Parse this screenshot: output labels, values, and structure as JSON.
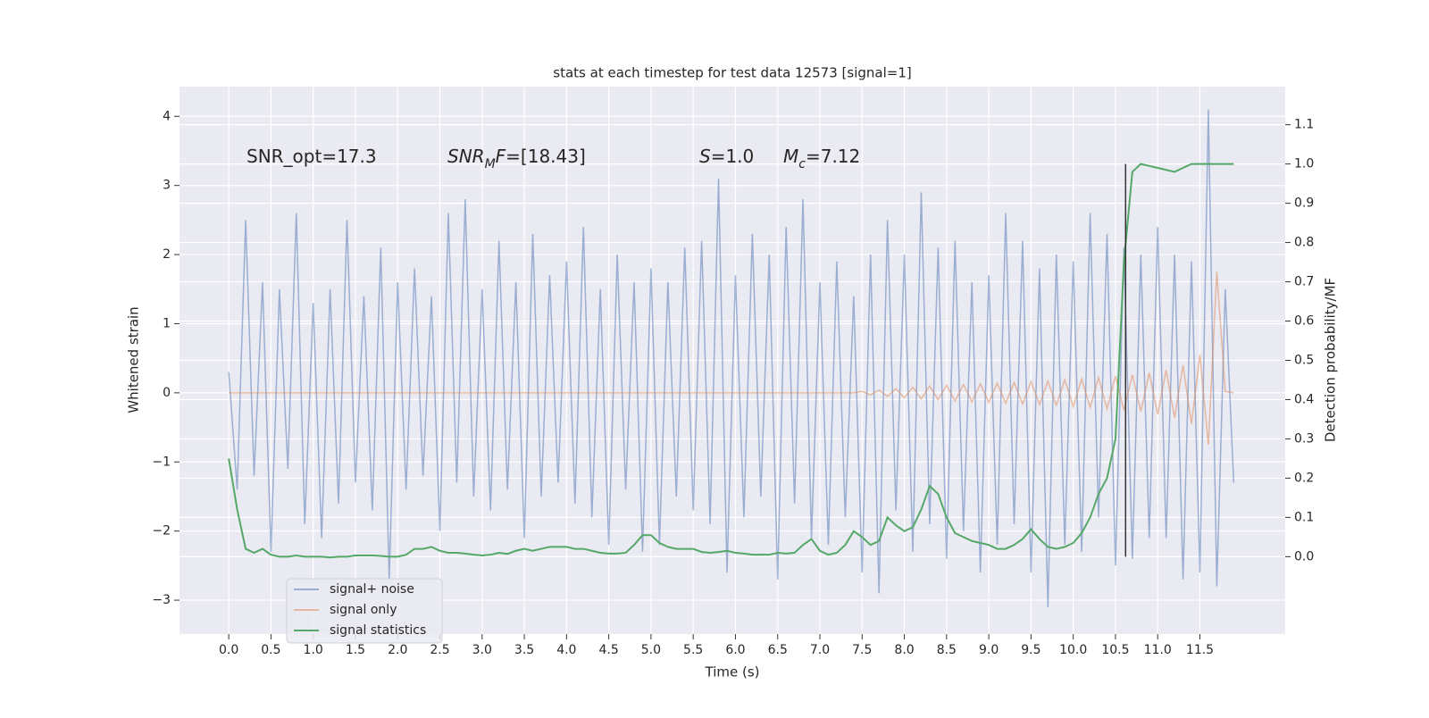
{
  "chart_data": {
    "type": "line",
    "title": "stats at each timestep for test data 12573 [signal=1]",
    "xlabel": "Time (s)",
    "ylabel": "Whitened strain",
    "y2label": "Detection probability/MF",
    "x": [
      0,
      0.1,
      0.2,
      0.3,
      0.4,
      0.5,
      0.6,
      0.7,
      0.8,
      0.9,
      1,
      1.1,
      1.2,
      1.3,
      1.4,
      1.5,
      1.6,
      1.7,
      1.8,
      1.9,
      2,
      2.1,
      2.2,
      2.3,
      2.4,
      2.5,
      2.6,
      2.7,
      2.8,
      2.9,
      3,
      3.1,
      3.2,
      3.3,
      3.4,
      3.5,
      3.6,
      3.7,
      3.8,
      3.9,
      4,
      4.1,
      4.2,
      4.3,
      4.4,
      4.5,
      4.6,
      4.7,
      4.8,
      4.9,
      5,
      5.1,
      5.2,
      5.3,
      5.4,
      5.5,
      5.6,
      5.7,
      5.8,
      5.9,
      6,
      6.1,
      6.2,
      6.3,
      6.4,
      6.5,
      6.6,
      6.7,
      6.8,
      6.9,
      7,
      7.1,
      7.2,
      7.3,
      7.4,
      7.5,
      7.6,
      7.7,
      7.8,
      7.9,
      8,
      8.1,
      8.2,
      8.3,
      8.4,
      8.5,
      8.6,
      8.7,
      8.8,
      8.9,
      9,
      9.1,
      9.2,
      9.3,
      9.4,
      9.5,
      9.6,
      9.7,
      9.8,
      9.9,
      10,
      10.1,
      10.2,
      10.3,
      10.4,
      10.5,
      10.6,
      10.7,
      10.8,
      10.9,
      11,
      11.1,
      11.2,
      11.3,
      11.4,
      11.5,
      11.6,
      11.7,
      11.8,
      11.9
    ],
    "series": [
      {
        "name": "signal+ noise",
        "color": "#4c72b0",
        "alpha": 0.5,
        "values": [
          0.3,
          -1.4,
          2.5,
          -1.2,
          1.6,
          -2.3,
          1.5,
          -1.1,
          2.6,
          -1.9,
          1.3,
          -2.1,
          1.5,
          -1.6,
          2.5,
          -1.3,
          1.4,
          -1.7,
          2.1,
          -2.7,
          1.6,
          -1.4,
          1.8,
          -1.2,
          1.4,
          -2.0,
          2.6,
          -1.3,
          2.8,
          -1.5,
          1.5,
          -1.7,
          2.2,
          -1.4,
          1.6,
          -2.1,
          2.3,
          -1.5,
          1.7,
          -1.3,
          1.9,
          -1.6,
          2.4,
          -1.8,
          1.5,
          -2.2,
          2.0,
          -1.4,
          1.6,
          -2.3,
          1.8,
          -2.2,
          1.6,
          -1.5,
          2.1,
          -1.7,
          2.2,
          -1.9,
          3.1,
          -2.6,
          1.7,
          -1.8,
          2.3,
          -1.5,
          2.0,
          -2.7,
          2.4,
          -1.6,
          2.8,
          -2.1,
          1.6,
          -2.2,
          1.9,
          -1.8,
          1.4,
          -2.6,
          2.0,
          -2.9,
          2.5,
          -1.7,
          2.0,
          -2.3,
          2.9,
          -1.9,
          2.1,
          -2.4,
          2.2,
          -2.0,
          1.6,
          -2.6,
          1.7,
          -2.2,
          2.6,
          -1.9,
          2.2,
          -2.6,
          1.8,
          -3.1,
          2.0,
          -2.2,
          1.9,
          -2.3,
          2.6,
          -1.8,
          2.3,
          -2.5,
          2.1,
          -2.4,
          2.0,
          -2.1,
          2.4,
          -2.1,
          2.0,
          -2.7,
          1.9,
          -2.6,
          4.1,
          -2.8,
          1.5,
          -1.3
        ]
      },
      {
        "name": "signal only",
        "color": "#dd8452",
        "alpha": 0.5,
        "values": [
          0,
          0,
          0,
          0,
          0,
          0,
          0,
          0,
          0,
          0,
          0,
          0,
          0,
          0,
          0,
          0,
          0,
          0,
          0,
          0,
          0,
          0,
          0,
          0,
          0,
          0,
          0,
          0,
          0,
          0,
          0,
          0,
          0,
          0,
          0,
          0,
          0,
          0,
          0,
          0,
          0,
          0,
          0,
          0,
          0,
          0,
          0,
          0,
          0,
          0,
          0,
          0,
          0,
          0,
          0,
          0,
          0,
          0,
          0,
          0,
          0,
          0,
          0,
          0,
          0,
          0,
          0,
          0,
          0,
          0,
          0,
          0,
          0,
          0,
          0,
          0.02,
          -0.03,
          0.04,
          -0.05,
          0.06,
          -0.07,
          0.08,
          -0.09,
          0.1,
          -0.1,
          0.11,
          -0.12,
          0.12,
          -0.13,
          0.13,
          -0.14,
          0.14,
          -0.15,
          0.15,
          -0.16,
          0.16,
          -0.17,
          0.17,
          -0.18,
          0.19,
          -0.2,
          0.2,
          -0.21,
          0.22,
          -0.23,
          0.24,
          -0.25,
          0.26,
          -0.27,
          0.29,
          -0.31,
          0.33,
          -0.36,
          0.4,
          -0.45,
          0.55,
          -0.75,
          1.75,
          0.02,
          0
        ]
      },
      {
        "name": "signal statistics",
        "color": "#55a868",
        "alpha": 1,
        "axis": "y2",
        "values": [
          0.25,
          0.12,
          0.02,
          0.01,
          0.02,
          0.005,
          0,
          0,
          0.003,
          0,
          0,
          0,
          -0.002,
          0,
          0,
          0.003,
          0.003,
          0.003,
          0.002,
          0,
          0,
          0.005,
          0.02,
          0.02,
          0.025,
          0.015,
          0.01,
          0.01,
          0.008,
          0.005,
          0.003,
          0.005,
          0.01,
          0.007,
          0.015,
          0.02,
          0.015,
          0.02,
          0.025,
          0.025,
          0.025,
          0.02,
          0.02,
          0.015,
          0.01,
          0.008,
          0.008,
          0.01,
          0.03,
          0.055,
          0.055,
          0.035,
          0.025,
          0.02,
          0.02,
          0.02,
          0.012,
          0.01,
          0.012,
          0.015,
          0.01,
          0.008,
          0.005,
          0.005,
          0.005,
          0.01,
          0.008,
          0.01,
          0.03,
          0.045,
          0.015,
          0.005,
          0.01,
          0.03,
          0.065,
          0.05,
          0.03,
          0.04,
          0.1,
          0.08,
          0.065,
          0.075,
          0.12,
          0.18,
          0.16,
          0.1,
          0.06,
          0.05,
          0.04,
          0.035,
          0.03,
          0.02,
          0.02,
          0.03,
          0.045,
          0.07,
          0.045,
          0.025,
          0.02,
          0.025,
          0.035,
          0.06,
          0.1,
          0.16,
          0.2,
          0.3,
          0.75,
          0.98,
          1.0,
          0.995,
          0.99,
          0.985,
          0.98,
          0.99,
          1.0,
          1.0,
          1.0,
          1.0,
          1.0,
          1.0
        ]
      }
    ],
    "vline_x": 10.62,
    "vline_color": "#333333",
    "annotations": [
      {
        "parts": [
          {
            "text": "SNR_opt=17.3"
          }
        ]
      },
      {
        "parts": [
          {
            "text": "SNR",
            "italic": true
          },
          {
            "text": "M",
            "italic": true,
            "sub": true
          },
          {
            "text": "F",
            "italic": true
          },
          {
            "text": "=[18.43]"
          }
        ]
      },
      {
        "parts": [
          {
            "text": "S",
            "italic": true
          },
          {
            "text": "=1.0"
          }
        ]
      },
      {
        "parts": [
          {
            "text": "M",
            "italic": true
          },
          {
            "text": "c",
            "italic": true,
            "sub": true
          },
          {
            "text": "=7.12"
          }
        ]
      }
    ],
    "xlim": [
      -0.583,
      12.51
    ],
    "xticks": [
      {
        "value": 0,
        "label": "0.0"
      },
      0.5,
      {
        "value": 1,
        "label": "1.0"
      },
      1.5,
      {
        "value": 2,
        "label": "2.0"
      },
      2.5,
      {
        "value": 3,
        "label": "3.0"
      },
      3.5,
      {
        "value": 4,
        "label": "4.0"
      },
      4.5,
      {
        "value": 5,
        "label": "5.0"
      },
      5.5,
      {
        "value": 6,
        "label": "6.0"
      },
      6.5,
      {
        "value": 7,
        "label": "7.0"
      },
      7.5,
      {
        "value": 8,
        "label": "8.0"
      },
      8.5,
      {
        "value": 9,
        "label": "9.0"
      },
      9.5,
      {
        "value": 10,
        "label": "10.0"
      },
      10.5,
      {
        "value": 11,
        "label": "11.0"
      },
      11.5
    ],
    "ylim": [
      -3.49,
      4.43
    ],
    "yticks": [
      {
        "value": -3,
        "label": "−3"
      },
      {
        "value": -2,
        "label": "−2"
      },
      {
        "value": -1,
        "label": "−1"
      },
      0,
      1,
      2,
      3,
      4
    ],
    "y2lim": [
      -0.197,
      1.197
    ],
    "y2ticks": [
      {
        "value": 0,
        "label": "0.0"
      },
      0.1,
      0.2,
      0.3,
      0.4,
      0.5,
      0.6,
      0.7,
      0.8,
      0.9,
      {
        "value": 1,
        "label": "1.0"
      },
      1.1
    ],
    "grid": true,
    "legend": "lower left"
  }
}
